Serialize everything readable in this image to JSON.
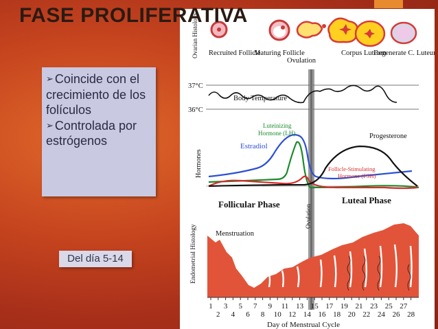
{
  "title": "FASE PROLIFERATIVA",
  "bullets": [
    {
      "marker": "➢",
      "text": "Coincide con el crecimiento de los folículos"
    },
    {
      "marker": "➢",
      "text": "Controlada por estrógenos"
    }
  ],
  "day_badge": "Del día 5-14",
  "diagram": {
    "ovarian_label": "Ovarian Histology",
    "stages": [
      "Recruited Follicle",
      "Maturing Follicle",
      "Ovulation",
      "Corpus Luteum",
      "Degenerate C. Luteum"
    ],
    "temp_labels": [
      "37°C",
      "36°C"
    ],
    "temp_curve_label": "Body Temperature",
    "hormones_label": "Hormones",
    "hormone_names": {
      "lh": "Luteinizing Hormone (LH)",
      "estradiol": "Estradiol",
      "progesterone": "Progesterone",
      "fsh": "Follicle-Stimulating Hormone (FSH)"
    },
    "phases": [
      "Follicular Phase",
      "Luteal Phase"
    ],
    "ovulation_marker": "Ovulation",
    "endometrial_label": "Endometrial Histology",
    "menstruation_label": "Menstruation",
    "days_odd": [
      "1",
      "3",
      "5",
      "7",
      "9",
      "11",
      "13",
      "15",
      "17",
      "19",
      "21",
      "23",
      "25",
      "27"
    ],
    "days_even": [
      "2",
      "4",
      "6",
      "8",
      "10",
      "12",
      "14",
      "16",
      "18",
      "20",
      "22",
      "24",
      "26",
      "28"
    ],
    "x_axis_label": "Day of Menstrual Cycle",
    "colors": {
      "estradiol": "#2b4fd6",
      "lh": "#1a8a2a",
      "fsh": "#d62b2b",
      "progesterone": "#111111",
      "tissue": "#e2543a"
    }
  }
}
